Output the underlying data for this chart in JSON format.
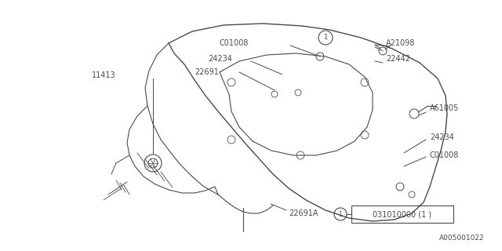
{
  "bg_color": "#ffffff",
  "line_color": "#4a4a4a",
  "text_color": "#4a4a4a",
  "diagram_id": "A005001022",
  "ref_box_text": "031010000 (1 )",
  "figsize": [
    6.4,
    3.2
  ],
  "dpi": 100,
  "xlim": [
    0,
    640
  ],
  "ylim": [
    0,
    320
  ]
}
